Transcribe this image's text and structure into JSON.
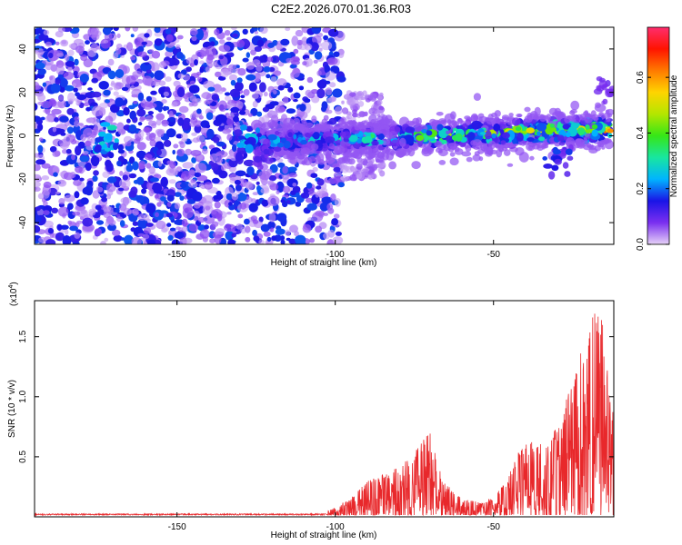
{
  "title": "C2E2.2026.070.01.36.R03",
  "chart_data": [
    {
      "type": "heatmap",
      "title": "C2E2.2026.070.01.36.R03",
      "xlabel": "Height of straight line (km)",
      "ylabel": "Frequency (Hz)",
      "xlim": [
        -195,
        -12
      ],
      "ylim": [
        -50,
        50
      ],
      "xticks": [
        -150,
        -100,
        -50
      ],
      "yticks": [
        -40,
        -20,
        0,
        20,
        40
      ],
      "grid": false,
      "colorbar": {
        "label": "Normalized spectral amplitude",
        "range": [
          0.0,
          0.78
        ],
        "ticks": [
          0.0,
          0.2,
          0.4,
          0.6
        ],
        "colors": [
          "#e6d2f7",
          "#7a2ff0",
          "#1a14e6",
          "#00b4ff",
          "#18e6a0",
          "#36e617",
          "#b4e600",
          "#ffd400",
          "#ff7a00",
          "#ff1400",
          "#ff2d6e"
        ]
      },
      "band": {
        "x_start": -125,
        "x_end": -13,
        "center_start": -3,
        "center_end": 3,
        "halfwidth": 5,
        "amp_start": 0.22,
        "amp_end": 0.62
      },
      "noise_region": {
        "x_start": -195,
        "x_end": -98,
        "extra_x_end": -85,
        "extra_y_range": [
          -20,
          20
        ]
      },
      "blobs": [
        {
          "x": -173,
          "y": -3,
          "amp": 0.25
        },
        {
          "x": -128,
          "y": -2,
          "amp": 0.22
        },
        {
          "x": -123,
          "y": -10,
          "amp": 0.12
        },
        {
          "x": -30,
          "y": -9,
          "amp": 0.15
        },
        {
          "x": -13,
          "y": 21,
          "amp": 0.08
        }
      ]
    },
    {
      "type": "line",
      "xlabel": "Height of straight line (km)",
      "ylabel": "SNR (10 * v/v)",
      "y_multiplier_label": "(x10",
      "y_multiplier_exp": "4",
      "xlim": [
        -195,
        -12
      ],
      "ylim": [
        0,
        1.8
      ],
      "xticks": [
        -150,
        -100,
        -50
      ],
      "yticks": [
        0.5,
        1.0,
        1.5
      ],
      "series": [
        {
          "color": "#e8282b",
          "envelope_x": [
            -195,
            -106,
            -103,
            -100,
            -95,
            -90,
            -85,
            -80,
            -76,
            -73,
            -70,
            -66,
            -62,
            -58,
            -54,
            -50,
            -46,
            -42,
            -38,
            -34,
            -30,
            -26,
            -22,
            -19,
            -16,
            -14,
            -12
          ],
          "envelope_y": [
            0.025,
            0.025,
            0.04,
            0.08,
            0.16,
            0.3,
            0.35,
            0.42,
            0.5,
            0.62,
            0.75,
            0.3,
            0.2,
            0.14,
            0.12,
            0.16,
            0.3,
            0.55,
            0.65,
            0.6,
            0.75,
            1.05,
            1.4,
            1.65,
            1.8,
            1.25,
            0.9
          ],
          "floor_y": 0.02
        }
      ]
    }
  ]
}
